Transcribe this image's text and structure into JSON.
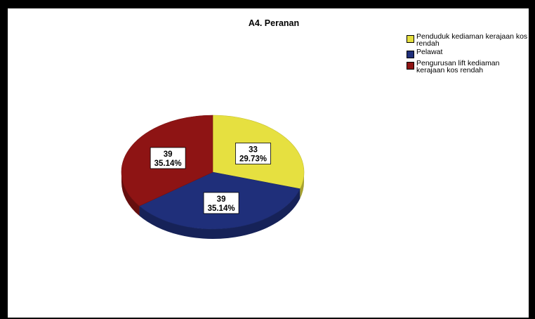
{
  "chart_data": {
    "type": "pie",
    "title": "A4. Peranan",
    "slices": [
      {
        "label": "Penduduk kediaman kerajaan kos rendah",
        "count": 33,
        "percent_label": "29.73%",
        "color": "#e6e040"
      },
      {
        "label": "Pelawat",
        "count": 39,
        "percent_label": "35.14%",
        "color": "#1f2f7a"
      },
      {
        "label": "Pengurusan lift kediaman kerajaan kos rendah",
        "count": 39,
        "percent_label": "35.14%",
        "color": "#8e1414"
      }
    ],
    "legend_position": "top-right"
  },
  "legend": {
    "items": [
      {
        "label": "Penduduk kediaman kerajaan kos rendah",
        "color": "#e6e040"
      },
      {
        "label": "Pelawat",
        "color": "#1f2f7a"
      },
      {
        "label": "Pengurusan lift kediaman kerajaan kos rendah",
        "color": "#8e1414"
      }
    ]
  }
}
